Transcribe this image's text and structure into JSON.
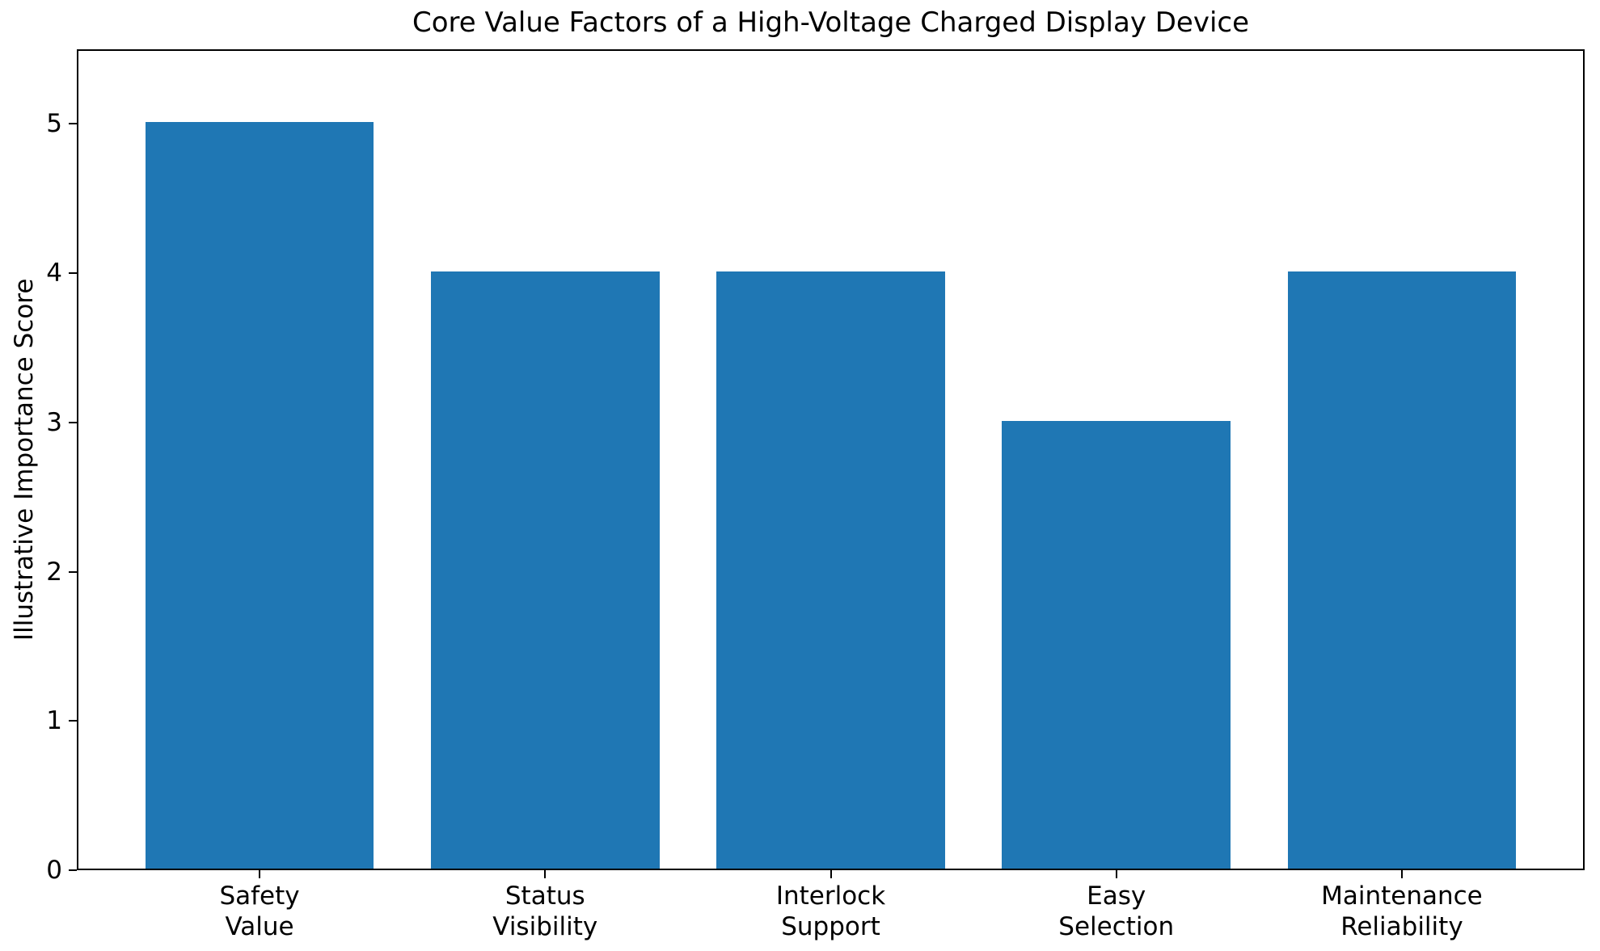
{
  "chart_data": {
    "type": "bar",
    "title": "Core Value Factors of a High-Voltage Charged Display Device",
    "xlabel": "",
    "ylabel": "Illustrative Importance Score",
    "categories": [
      "Safety\nValue",
      "Status\nVisibility",
      "Interlock\nSupport",
      "Easy\nSelection",
      "Maintenance\nReliability"
    ],
    "values": [
      5,
      4,
      4,
      3,
      4
    ],
    "yticks": [
      0,
      1,
      2,
      3,
      4,
      5
    ],
    "ylim": [
      0,
      5.5
    ],
    "bar_color": "#1f77b4",
    "text_color": "#000000",
    "background_color": "#ffffff",
    "grid": false,
    "legend": "none",
    "bar_width_fraction": 0.8
  }
}
